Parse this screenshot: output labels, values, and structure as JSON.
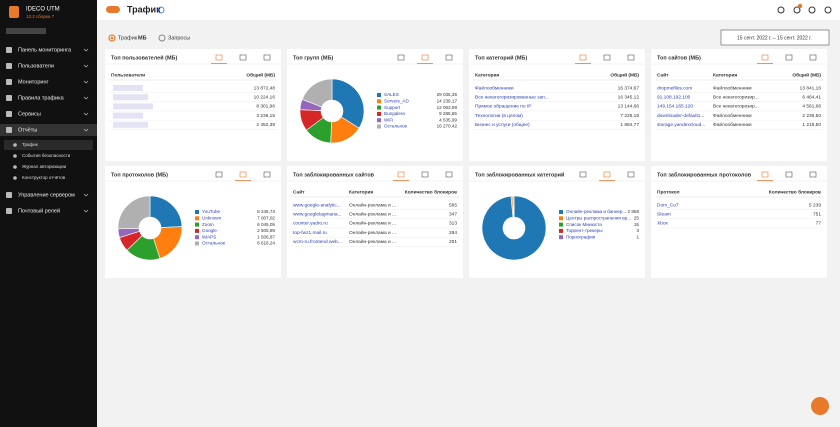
{
  "sidebar": {
    "product": "IDECO UTM",
    "version": "13.2 сборка 7",
    "menu": [
      "Панель мониторинга",
      "Пользователи",
      "Мониторинг",
      "Правила трафика",
      "Сервисы",
      "Отчёты"
    ],
    "submenu": [
      "Трафик",
      "События безопасности",
      "Журнал авторизации",
      "Конструктор отчётов"
    ],
    "menu_after": [
      "Управление сервером",
      "Почтовый релей"
    ]
  },
  "header": {
    "title": "Трафик"
  },
  "filter": {
    "traffic": "Трафик",
    "unit": "МБ",
    "requests": "Запросы",
    "date_range": "15 сент. 2022 г. – 15 сент. 2022 г."
  },
  "cards": [
    {
      "title": "Топ пользователей (МБ)",
      "kind": "table",
      "columns": [
        "Пользователи",
        "Общий (МБ)"
      ],
      "rows": [
        [
          "13 872,48"
        ],
        [
          "10 224,16"
        ],
        [
          "8 301,96"
        ],
        [
          "3 236,15"
        ],
        [
          "2 452,38"
        ]
      ]
    },
    {
      "title": "Топ групп (МБ)",
      "kind": "pie",
      "slices": [
        {
          "name": "SALES",
          "value": 29035.35,
          "value_label": "29 035,35",
          "color": "#1f77b4"
        },
        {
          "name": "Servers_AD",
          "value": 14239.17,
          "value_label": "14 239,17",
          "color": "#ff7f0e"
        },
        {
          "name": "Support",
          "value": 12063.99,
          "value_label": "12 063,99",
          "color": "#2ca02c"
        },
        {
          "name": "Bungalera",
          "value": 9285.65,
          "value_label": "9 285,65",
          "color": "#d62728"
        },
        {
          "name": "WiFi",
          "value": 4535.99,
          "value_label": "4 535,99",
          "color": "#9467bd"
        },
        {
          "name": "Остальное",
          "value": 16270.42,
          "value_label": "16 270,42",
          "color": "#b0b0b0"
        }
      ]
    },
    {
      "title": "Топ категорий (МБ)",
      "kind": "table",
      "columns": [
        "Категория",
        "Общий (МБ)"
      ],
      "rows": [
        [
          "Файлообменники",
          "16 374,67"
        ],
        [
          "Все некатегоризированные зап...",
          "16 345,12"
        ],
        [
          "Прямое обращение по IP",
          "13 144,66"
        ],
        [
          "Технологии (в целом)",
          "7 226,19"
        ],
        [
          "Бизнес и услуги (общее)",
          "1 884,77"
        ]
      ]
    },
    {
      "title": "Топ сайтов (МБ)",
      "kind": "table",
      "columns": [
        "Сайт",
        "Категория",
        "Общий (МБ)"
      ],
      "rows": [
        [
          "dropmefiles.com",
          "Файлообменники",
          "13 841,16"
        ],
        [
          "91.108.192.100",
          "Все некатегоризир...",
          "6 464,41"
        ],
        [
          "149.154.165.120",
          "Все некатегоризир...",
          "4 561,68"
        ],
        [
          "downloader-default1...",
          "Файлообменники",
          "2 236,50"
        ],
        [
          "storage.yandexcloud...",
          "Файлообменники",
          "1 218,50"
        ]
      ]
    },
    {
      "title": "Топ протоколов (МБ)",
      "kind": "pie",
      "slices": [
        {
          "name": "YouTube",
          "value": 8245.73,
          "value_label": "8 245,73",
          "color": "#1f77b4"
        },
        {
          "name": "Unknown",
          "value": 7007.02,
          "value_label": "7 007,02",
          "color": "#ff7f0e"
        },
        {
          "name": "Zoom",
          "value": 6045.05,
          "value_label": "6 045,05",
          "color": "#2ca02c"
        },
        {
          "name": "Google",
          "value": 2505.89,
          "value_label": "2 505,89",
          "color": "#d62728"
        },
        {
          "name": "IMAPS",
          "value": 1506.87,
          "value_label": "1 506,87",
          "color": "#9467bd"
        },
        {
          "name": "Остальное",
          "value": 8618.24,
          "value_label": "8 618,24",
          "color": "#b0b0b0"
        }
      ]
    },
    {
      "title": "Топ заблокированных сайтов",
      "kind": "table",
      "columns": [
        "Сайт",
        "Категория",
        "Количество блокиров"
      ],
      "rows": [
        [
          "www.google-analytic...",
          "Онлайн-реклама и ...",
          "565"
        ],
        [
          "www.googletagmana...",
          "Онлайн-реклама и ...",
          "347"
        ],
        [
          "counter.yadro.ru",
          "Онлайн-реклама и ...",
          "313"
        ],
        [
          "top-fwz1.mail.ru",
          "Онлайн-реклама и ...",
          "284"
        ],
        [
          "wcm-ru.frontend.web...",
          "Онлайн-реклама и ...",
          "251"
        ]
      ]
    },
    {
      "title": "Топ заблокированных категорий",
      "kind": "pie",
      "slices": [
        {
          "name": "Онлайн-реклама и баннер...",
          "value": 2868,
          "value_label": "2 868",
          "color": "#1f77b4"
        },
        {
          "name": "Центры распространения вр...",
          "value": 25,
          "value_label": "25",
          "color": "#ff7f0e"
        },
        {
          "name": "Список Минюста",
          "value": 15,
          "value_label": "15",
          "color": "#2ca02c"
        },
        {
          "name": "Торрент-трекеры",
          "value": 3,
          "value_label": "3",
          "color": "#d62728"
        },
        {
          "name": "Порнография",
          "value": 1,
          "value_label": "1",
          "color": "#9467bd"
        }
      ]
    },
    {
      "title": "Топ заблокированных протоколов",
      "kind": "table",
      "columns": [
        "Протокол",
        "Количество блокиров"
      ],
      "rows": [
        [
          "Dom_Co7",
          "5 239"
        ],
        [
          "Steam",
          "751"
        ],
        [
          "Xbox",
          "77"
        ]
      ]
    }
  ]
}
